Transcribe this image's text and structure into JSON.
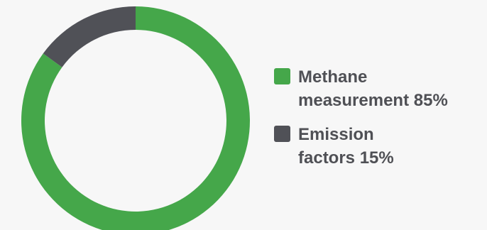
{
  "chart_data": {
    "type": "pie",
    "variant": "donut",
    "title": "",
    "series": [
      {
        "name": "Methane measurement",
        "value": 85,
        "pct_label": "85%",
        "color": "#45a74a",
        "legend_line1": "Methane",
        "legend_line2": "measurement"
      },
      {
        "name": "Emission factors",
        "value": 15,
        "pct_label": "15%",
        "color": "#505157",
        "legend_line1": "Emission",
        "legend_line2": "factors"
      }
    ],
    "legend_position": "right"
  },
  "colors": {
    "background": "#f7f7f7",
    "text": "#4f5055"
  }
}
